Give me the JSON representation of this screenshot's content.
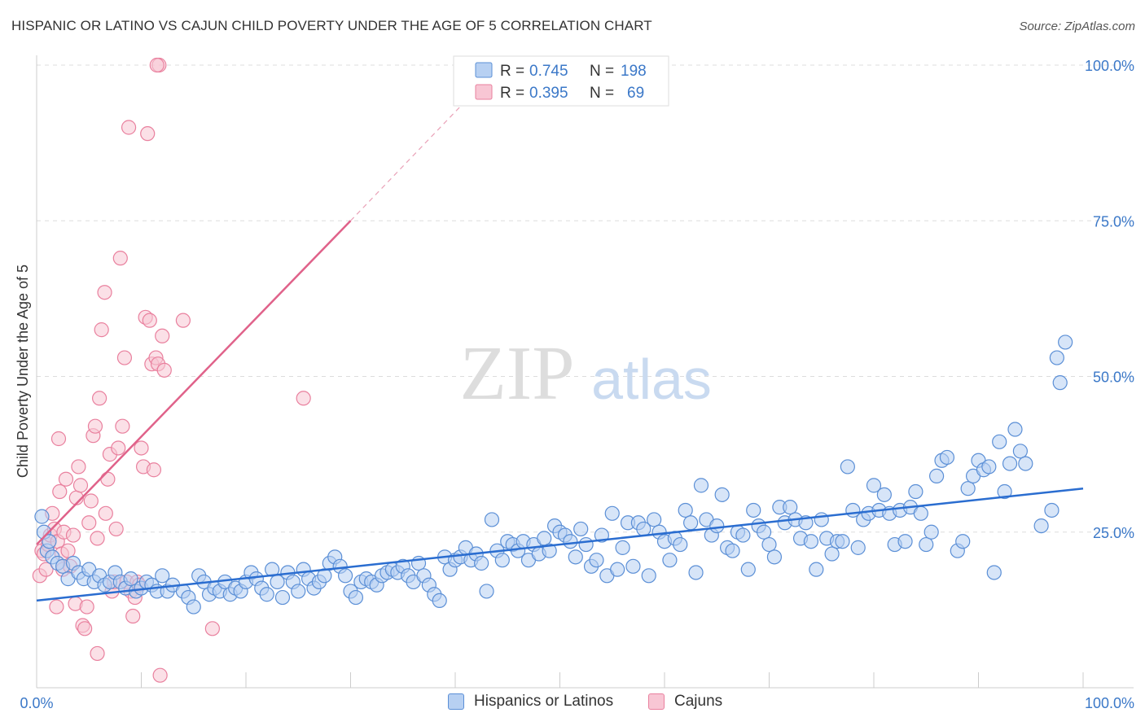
{
  "title": "HISPANIC OR LATINO VS CAJUN CHILD POVERTY UNDER THE AGE OF 5 CORRELATION CHART",
  "source": "Source: ZipAtlas.com",
  "watermark": {
    "zip": "ZIP",
    "atlas": "atlas"
  },
  "colors": {
    "blue_fill": "#b7d0f2",
    "blue_edge": "#5b8fd6",
    "blue_line": "#2a6dd0",
    "pink_fill": "#f8c6d4",
    "pink_edge": "#e9809e",
    "pink_line": "#e0628a",
    "axis_text": "#3b78c8",
    "grid": "#dddddd"
  },
  "legend_top": [
    {
      "r_label": "R =",
      "r_value": "0.745",
      "n_label": "N =",
      "n_value": "198"
    },
    {
      "r_label": "R =",
      "r_value": "0.395",
      "n_label": "N =",
      "n_value": "69"
    }
  ],
  "chart_data": {
    "type": "scatter",
    "xlabel": "",
    "ylabel": "Child Poverty Under the Age of 5",
    "xlim": [
      0,
      100
    ],
    "ylim": [
      0,
      100
    ],
    "x_tick_labels": [
      "0.0%",
      "100.0%"
    ],
    "y_tick_labels": [
      "25.0%",
      "50.0%",
      "75.0%",
      "100.0%"
    ],
    "y_ticks": [
      25,
      50,
      75,
      100
    ],
    "legend_bottom": [
      "Hispanics or Latinos",
      "Cajuns"
    ],
    "series": [
      {
        "name": "Hispanics or Latinos",
        "r": 0.745,
        "n": 198,
        "trend": {
          "x0": 0,
          "y0": 14.0,
          "x1": 100,
          "y1": 32.0
        },
        "points": [
          [
            0.5,
            27.5
          ],
          [
            0.7,
            25.0
          ],
          [
            1.0,
            22.0
          ],
          [
            1.5,
            21.0
          ],
          [
            1.2,
            23.5
          ],
          [
            2.0,
            20.0
          ],
          [
            2.5,
            19.5
          ],
          [
            3.0,
            17.5
          ],
          [
            3.5,
            20.0
          ],
          [
            4.0,
            18.5
          ],
          [
            4.5,
            17.5
          ],
          [
            5.0,
            19.0
          ],
          [
            5.5,
            17.0
          ],
          [
            6.0,
            18.0
          ],
          [
            6.5,
            16.5
          ],
          [
            7.0,
            17.0
          ],
          [
            7.5,
            18.5
          ],
          [
            8.0,
            17.0
          ],
          [
            8.5,
            16.0
          ],
          [
            9.0,
            17.5
          ],
          [
            9.5,
            15.5
          ],
          [
            10.0,
            16.0
          ],
          [
            10.5,
            17.0
          ],
          [
            11.0,
            16.5
          ],
          [
            11.5,
            15.5
          ],
          [
            12.0,
            18.0
          ],
          [
            12.5,
            15.5
          ],
          [
            13.0,
            16.5
          ],
          [
            14.0,
            15.5
          ],
          [
            14.5,
            14.5
          ],
          [
            15.0,
            13.0
          ],
          [
            15.5,
            18.0
          ],
          [
            16.0,
            17.0
          ],
          [
            16.5,
            15.0
          ],
          [
            17.0,
            16.0
          ],
          [
            17.5,
            15.5
          ],
          [
            18.0,
            17.0
          ],
          [
            18.5,
            15.0
          ],
          [
            19.0,
            16.0
          ],
          [
            19.5,
            15.5
          ],
          [
            20.0,
            17.0
          ],
          [
            20.5,
            18.5
          ],
          [
            21.0,
            17.5
          ],
          [
            21.5,
            16.0
          ],
          [
            22.0,
            15.0
          ],
          [
            22.5,
            19.0
          ],
          [
            23.0,
            17.0
          ],
          [
            23.5,
            14.5
          ],
          [
            24.0,
            18.5
          ],
          [
            24.5,
            17.0
          ],
          [
            25.0,
            15.5
          ],
          [
            25.5,
            19.0
          ],
          [
            26.0,
            17.5
          ],
          [
            26.5,
            16.0
          ],
          [
            27.0,
            17.0
          ],
          [
            27.5,
            18.0
          ],
          [
            28.0,
            20.0
          ],
          [
            28.5,
            21.0
          ],
          [
            29.0,
            19.5
          ],
          [
            29.5,
            18.0
          ],
          [
            30.0,
            15.5
          ],
          [
            30.5,
            14.5
          ],
          [
            31.0,
            17.0
          ],
          [
            31.5,
            17.5
          ],
          [
            32.0,
            17.0
          ],
          [
            32.5,
            16.5
          ],
          [
            33.0,
            18.0
          ],
          [
            33.5,
            18.5
          ],
          [
            34.0,
            19.0
          ],
          [
            34.5,
            18.5
          ],
          [
            35.0,
            19.5
          ],
          [
            35.5,
            18.0
          ],
          [
            36.0,
            17.0
          ],
          [
            36.5,
            20.0
          ],
          [
            37.0,
            18.0
          ],
          [
            37.5,
            16.5
          ],
          [
            38.0,
            15.0
          ],
          [
            38.5,
            14.0
          ],
          [
            39.0,
            21.0
          ],
          [
            39.5,
            19.0
          ],
          [
            40.0,
            20.5
          ],
          [
            40.5,
            21.0
          ],
          [
            41.0,
            22.5
          ],
          [
            41.5,
            20.5
          ],
          [
            42.0,
            21.5
          ],
          [
            42.5,
            20.0
          ],
          [
            43.0,
            15.5
          ],
          [
            43.5,
            27.0
          ],
          [
            44.0,
            22.0
          ],
          [
            44.5,
            20.5
          ],
          [
            45.0,
            23.5
          ],
          [
            45.5,
            23.0
          ],
          [
            46.0,
            22.0
          ],
          [
            46.5,
            23.5
          ],
          [
            47.0,
            20.5
          ],
          [
            47.5,
            23.0
          ],
          [
            48.0,
            21.5
          ],
          [
            48.5,
            24.0
          ],
          [
            49.0,
            22.0
          ],
          [
            49.5,
            26.0
          ],
          [
            50.0,
            25.0
          ],
          [
            50.5,
            24.5
          ],
          [
            51.0,
            23.5
          ],
          [
            51.5,
            21.0
          ],
          [
            52.0,
            25.5
          ],
          [
            52.5,
            23.0
          ],
          [
            53.0,
            19.5
          ],
          [
            53.5,
            20.5
          ],
          [
            54.0,
            24.5
          ],
          [
            54.5,
            18.0
          ],
          [
            55.0,
            28.0
          ],
          [
            55.5,
            19.0
          ],
          [
            56.0,
            22.5
          ],
          [
            56.5,
            26.5
          ],
          [
            57.0,
            19.5
          ],
          [
            57.5,
            26.5
          ],
          [
            58.0,
            25.5
          ],
          [
            58.5,
            18.0
          ],
          [
            59.0,
            27.0
          ],
          [
            59.5,
            25.0
          ],
          [
            60.0,
            23.5
          ],
          [
            60.5,
            20.5
          ],
          [
            61.0,
            24.0
          ],
          [
            61.5,
            23.0
          ],
          [
            62.0,
            28.5
          ],
          [
            62.5,
            26.5
          ],
          [
            63.0,
            18.5
          ],
          [
            63.5,
            32.5
          ],
          [
            64.0,
            27.0
          ],
          [
            64.5,
            24.5
          ],
          [
            65.0,
            26.0
          ],
          [
            65.5,
            31.0
          ],
          [
            66.0,
            22.5
          ],
          [
            66.5,
            22.0
          ],
          [
            67.0,
            25.0
          ],
          [
            67.5,
            24.5
          ],
          [
            68.0,
            19.0
          ],
          [
            68.5,
            28.5
          ],
          [
            69.0,
            26.0
          ],
          [
            69.5,
            25.0
          ],
          [
            70.0,
            23.0
          ],
          [
            70.5,
            21.0
          ],
          [
            71.0,
            29.0
          ],
          [
            71.5,
            26.5
          ],
          [
            72.0,
            29.0
          ],
          [
            72.5,
            27.0
          ],
          [
            73.0,
            24.0
          ],
          [
            73.5,
            26.5
          ],
          [
            74.0,
            23.5
          ],
          [
            74.5,
            19.0
          ],
          [
            75.0,
            27.0
          ],
          [
            75.5,
            24.0
          ],
          [
            76.0,
            21.5
          ],
          [
            76.5,
            23.5
          ],
          [
            77.0,
            23.5
          ],
          [
            77.5,
            35.5
          ],
          [
            78.0,
            28.5
          ],
          [
            78.5,
            22.5
          ],
          [
            79.0,
            27.0
          ],
          [
            79.5,
            28.0
          ],
          [
            80.0,
            32.5
          ],
          [
            80.5,
            28.5
          ],
          [
            81.0,
            31.0
          ],
          [
            81.5,
            28.0
          ],
          [
            82.0,
            23.0
          ],
          [
            82.5,
            28.5
          ],
          [
            83.0,
            23.5
          ],
          [
            83.5,
            29.0
          ],
          [
            84.0,
            31.5
          ],
          [
            84.5,
            28.0
          ],
          [
            85.0,
            23.0
          ],
          [
            85.5,
            25.0
          ],
          [
            86.0,
            34.0
          ],
          [
            86.5,
            36.5
          ],
          [
            87.0,
            37.0
          ],
          [
            88.0,
            22.0
          ],
          [
            88.5,
            23.5
          ],
          [
            89.0,
            32.0
          ],
          [
            89.5,
            34.0
          ],
          [
            90.0,
            36.5
          ],
          [
            90.5,
            35.0
          ],
          [
            91.0,
            35.5
          ],
          [
            91.5,
            18.5
          ],
          [
            92.0,
            39.5
          ],
          [
            92.5,
            31.5
          ],
          [
            93.0,
            36.0
          ],
          [
            93.5,
            41.5
          ],
          [
            94.0,
            38.0
          ],
          [
            94.5,
            36.0
          ],
          [
            97.5,
            53.0
          ],
          [
            97.8,
            49.0
          ],
          [
            98.3,
            55.5
          ],
          [
            97.0,
            28.5
          ],
          [
            96.0,
            26.0
          ]
        ]
      },
      {
        "name": "Cajuns",
        "r": 0.395,
        "n": 69,
        "trend": {
          "x0": 0,
          "y0": 23.0,
          "x1": 30,
          "y1": 75.0
        },
        "trend_dashed": {
          "x0": 30,
          "y0": 75.0,
          "x1": 42,
          "y1": 96.0
        },
        "points": [
          [
            0.3,
            18.0
          ],
          [
            0.5,
            22.0
          ],
          [
            0.7,
            21.5
          ],
          [
            0.9,
            19.0
          ],
          [
            1.1,
            23.0
          ],
          [
            1.3,
            24.5
          ],
          [
            1.5,
            28.0
          ],
          [
            1.7,
            25.5
          ],
          [
            1.9,
            13.0
          ],
          [
            2.0,
            23.5
          ],
          [
            2.1,
            40.0
          ],
          [
            2.2,
            31.5
          ],
          [
            2.4,
            21.5
          ],
          [
            2.5,
            19.0
          ],
          [
            2.6,
            25.0
          ],
          [
            2.8,
            33.5
          ],
          [
            3.0,
            22.0
          ],
          [
            3.2,
            19.5
          ],
          [
            3.5,
            24.5
          ],
          [
            3.7,
            13.5
          ],
          [
            3.8,
            30.5
          ],
          [
            4.0,
            35.5
          ],
          [
            4.2,
            32.5
          ],
          [
            4.4,
            10.0
          ],
          [
            4.6,
            9.5
          ],
          [
            4.8,
            13.0
          ],
          [
            5.0,
            26.5
          ],
          [
            5.2,
            30.0
          ],
          [
            5.4,
            40.5
          ],
          [
            5.6,
            42.0
          ],
          [
            5.8,
            24.0
          ],
          [
            5.8,
            5.5
          ],
          [
            6.0,
            46.5
          ],
          [
            6.2,
            57.5
          ],
          [
            6.5,
            63.5
          ],
          [
            6.6,
            28.0
          ],
          [
            6.8,
            33.5
          ],
          [
            7.0,
            37.5
          ],
          [
            7.2,
            15.5
          ],
          [
            7.4,
            17.0
          ],
          [
            7.6,
            25.5
          ],
          [
            7.8,
            38.5
          ],
          [
            8.0,
            69.0
          ],
          [
            8.2,
            42.0
          ],
          [
            8.4,
            53.0
          ],
          [
            8.6,
            17.0
          ],
          [
            8.8,
            90.0
          ],
          [
            9.0,
            15.5
          ],
          [
            9.2,
            11.5
          ],
          [
            9.4,
            14.5
          ],
          [
            9.6,
            17.0
          ],
          [
            9.8,
            16.5
          ],
          [
            10.0,
            38.5
          ],
          [
            10.2,
            35.5
          ],
          [
            10.4,
            59.5
          ],
          [
            10.6,
            89.0
          ],
          [
            10.8,
            59.0
          ],
          [
            11.0,
            52.0
          ],
          [
            11.2,
            35.0
          ],
          [
            11.4,
            53.0
          ],
          [
            11.6,
            52.0
          ],
          [
            11.8,
            2.0
          ],
          [
            12.0,
            56.5
          ],
          [
            12.2,
            51.0
          ],
          [
            14.0,
            59.0
          ],
          [
            16.8,
            9.5
          ],
          [
            25.5,
            46.5
          ],
          [
            11.7,
            100.0
          ],
          [
            11.5,
            100.0
          ]
        ]
      }
    ]
  }
}
